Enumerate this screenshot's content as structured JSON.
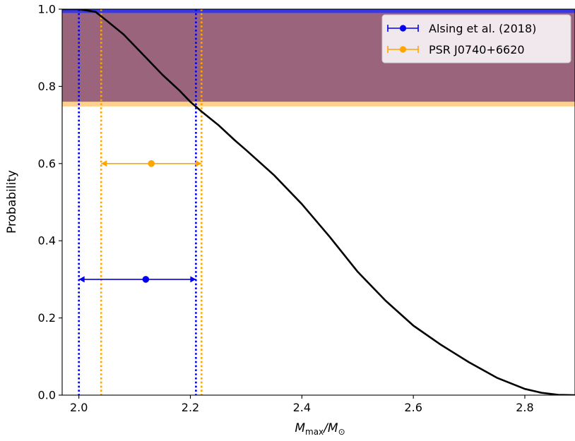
{
  "chart_data": {
    "type": "line",
    "title": "",
    "xlabel": {
      "main": "M",
      "sub1": "max",
      "sep": "/M",
      "sub2": "⊙"
    },
    "ylabel": "Probability",
    "xlim": [
      1.97,
      2.89
    ],
    "ylim": [
      0.0,
      1.0
    ],
    "x_ticks": [
      {
        "value": 2.0,
        "label": "2.0"
      },
      {
        "value": 2.2,
        "label": "2.2"
      },
      {
        "value": 2.4,
        "label": "2.4"
      },
      {
        "value": 2.6,
        "label": "2.6"
      },
      {
        "value": 2.8,
        "label": "2.8"
      }
    ],
    "y_ticks": [
      {
        "value": 0.0,
        "label": "0.0"
      },
      {
        "value": 0.2,
        "label": "0.2"
      },
      {
        "value": 0.4,
        "label": "0.4"
      },
      {
        "value": 0.6,
        "label": "0.6"
      },
      {
        "value": 0.8,
        "label": "0.8"
      },
      {
        "value": 1.0,
        "label": "1.0"
      }
    ],
    "grid": false,
    "legend_position": "top-right",
    "curve": {
      "color": "#000000",
      "x": [
        1.97,
        2.0,
        2.03,
        2.05,
        2.08,
        2.1,
        2.13,
        2.15,
        2.18,
        2.2,
        2.22,
        2.25,
        2.28,
        2.3,
        2.35,
        2.4,
        2.45,
        2.5,
        2.55,
        2.6,
        2.65,
        2.7,
        2.75,
        2.8,
        2.83,
        2.86,
        2.89
      ],
      "y": [
        1.0,
        1.0,
        0.993,
        0.97,
        0.935,
        0.905,
        0.86,
        0.83,
        0.79,
        0.76,
        0.735,
        0.7,
        0.66,
        0.635,
        0.57,
        0.495,
        0.41,
        0.32,
        0.245,
        0.18,
        0.13,
        0.085,
        0.045,
        0.016,
        0.006,
        0.001,
        0.0
      ]
    },
    "bands": [
      {
        "name": "Alsing et al. (2018)",
        "y0": 0.76,
        "y1": 0.99,
        "color": "#6a1a40",
        "alpha": 0.68,
        "edge_y": 0.99,
        "edge_color": "#3838e6"
      },
      {
        "name": "PSR J0740+6620",
        "y0": 0.748,
        "y1": 0.76,
        "color": "#ffd08a",
        "alpha": 1.0
      }
    ],
    "vlines": [
      {
        "x": 2.0,
        "color": "#0000ee"
      },
      {
        "x": 2.21,
        "color": "#0000ee"
      },
      {
        "x": 2.04,
        "color": "#ffa500"
      },
      {
        "x": 2.22,
        "color": "#ffa500"
      }
    ],
    "errorbars": [
      {
        "name": "Alsing et al. (2018)",
        "color": "#0000ee",
        "x": 2.12,
        "y": 0.3,
        "xmin": 2.0,
        "xmax": 2.21
      },
      {
        "name": "PSR J0740+6620",
        "color": "#ffa500",
        "x": 2.13,
        "y": 0.6,
        "xmin": 2.04,
        "xmax": 2.22
      }
    ],
    "legend": [
      {
        "label": "Alsing et al. (2018)",
        "color": "#0000ee"
      },
      {
        "label": "PSR J0740+6620",
        "color": "#ffa500"
      }
    ]
  }
}
